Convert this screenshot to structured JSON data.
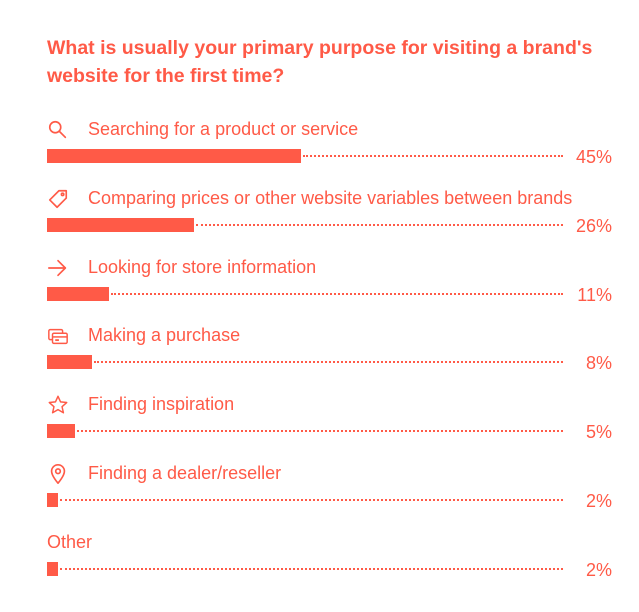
{
  "chart_data": {
    "type": "bar",
    "orientation": "horizontal",
    "title": "What is usually your primary purpose for visiting a brand's website for the first time?",
    "xlim": [
      0,
      100
    ],
    "grid": false,
    "legend": "none",
    "accent_color": "#ff5a47",
    "categories": [
      "Searching for a product or service",
      "Comparing prices or other website variables between brands",
      "Looking for store information",
      "Making a purchase",
      "Finding inspiration",
      "Finding a dealer/reseller",
      "Other"
    ],
    "values": [
      45,
      26,
      11,
      8,
      5,
      2,
      2
    ],
    "value_labels": [
      "45%",
      "26%",
      "11%",
      "8%",
      "5%",
      "2%",
      "2%"
    ],
    "icons": [
      "search-icon",
      "price-tag-icon",
      "arrow-right-icon",
      "credit-card-icon",
      "star-icon",
      "location-pin-icon",
      ""
    ]
  }
}
